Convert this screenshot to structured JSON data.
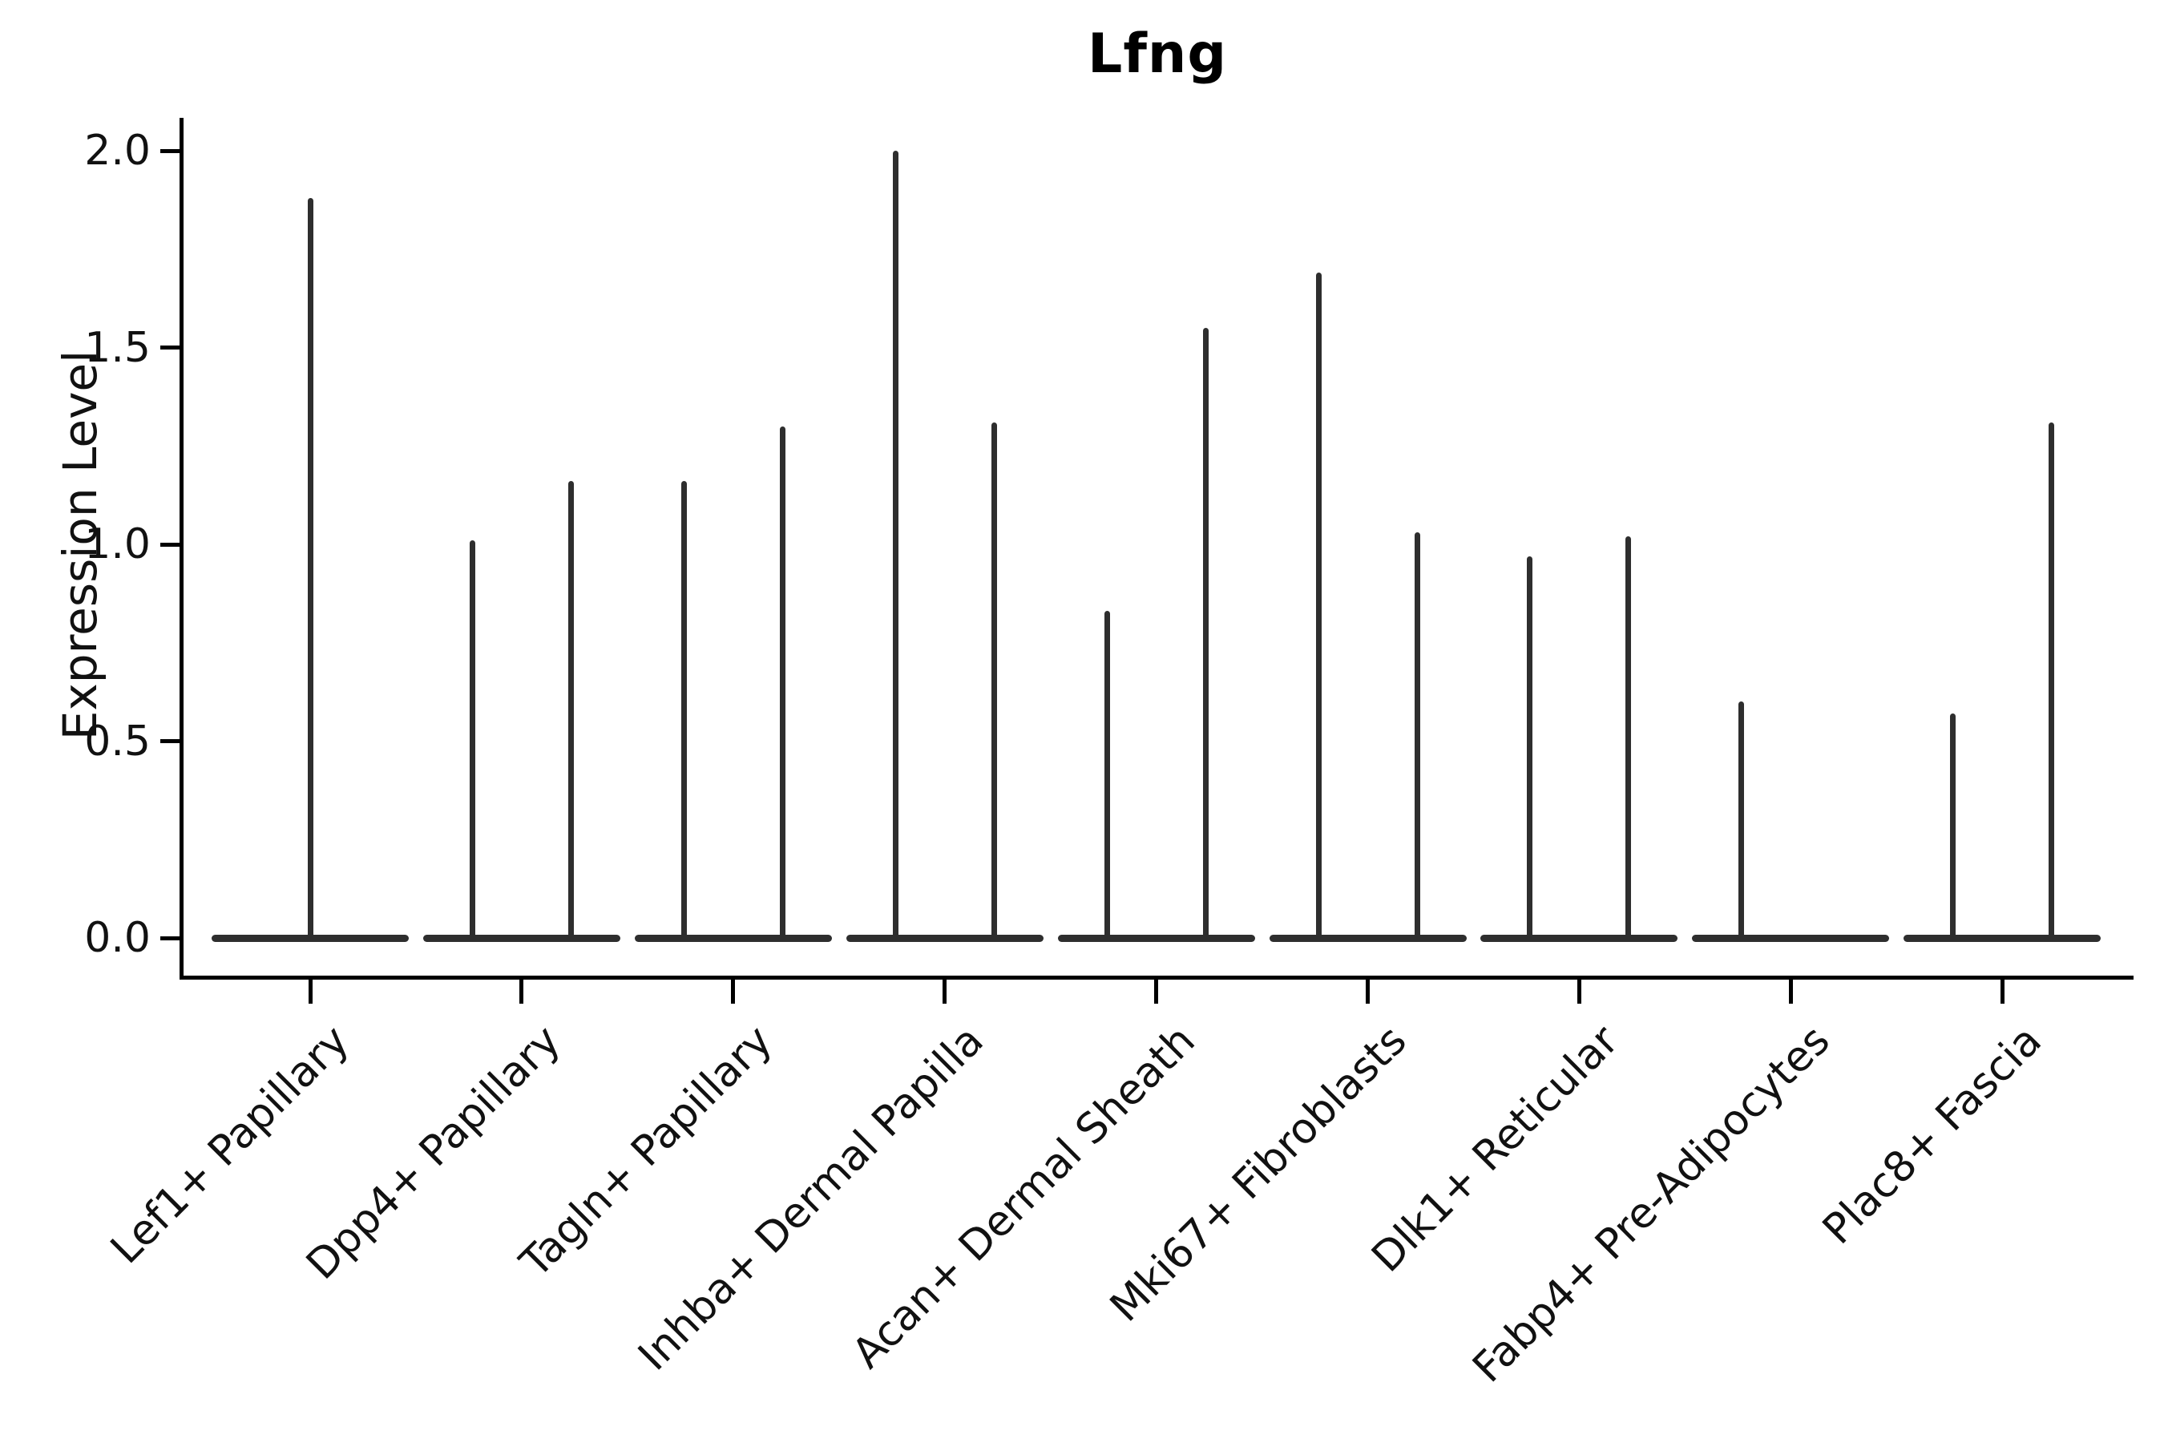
{
  "title": "Lfng",
  "y_axis_label": "Expression Level",
  "colors": {
    "violin": "#2e2e2e",
    "axis": "#000000",
    "text": "#111111",
    "background": "#ffffff"
  },
  "chart_data": {
    "type": "violin",
    "title": "Lfng",
    "xlabel": "",
    "ylabel": "Expression Level",
    "ylim": [
      0,
      2.0
    ],
    "yticks": [
      0.0,
      0.5,
      1.0,
      1.5,
      2.0
    ],
    "ytick_labels": [
      "0.0",
      "0.5",
      "1.0",
      "1.5",
      "2.0"
    ],
    "grid": false,
    "legend_position": "none",
    "x_tick_label_rotation_deg": 45,
    "description": "Seurat-style split violin plot of Lfng expression; most cells are at 0 so each violin collapses to a flat base at 0 with a thin spike reaching the maximum expression value. Categories 2-9 contain two side-by-side half-width violins (split groups); category 1 shows a single full-width violin and category 8's right group is entirely at 0 (no spike).",
    "categories": [
      "Lef1+ Papillary",
      "Dpp4+ Papillary",
      "Tagln+ Papillary",
      "Inhba+ Dermal Papilla",
      "Acan+ Dermal Sheath",
      "Mki67+ Fibroblasts",
      "Dlk1+ Reticular",
      "Fabp4+ Pre-Adipocytes",
      "Plac8+ Fascia"
    ],
    "violins": [
      {
        "category": "Lef1+ Papillary",
        "split": "single",
        "baseline_value": 0.0,
        "max_values": [
          1.88
        ]
      },
      {
        "category": "Dpp4+ Papillary",
        "split": "double",
        "baseline_value": 0.0,
        "max_values": [
          1.01,
          1.16
        ]
      },
      {
        "category": "Tagln+ Papillary",
        "split": "double",
        "baseline_value": 0.0,
        "max_values": [
          1.16,
          1.3
        ]
      },
      {
        "category": "Inhba+ Dermal Papilla",
        "split": "double",
        "baseline_value": 0.0,
        "max_values": [
          2.0,
          1.31
        ]
      },
      {
        "category": "Acan+ Dermal Sheath",
        "split": "double",
        "baseline_value": 0.0,
        "max_values": [
          0.83,
          1.55
        ]
      },
      {
        "category": "Mki67+ Fibroblasts",
        "split": "double",
        "baseline_value": 0.0,
        "max_values": [
          1.69,
          1.03
        ]
      },
      {
        "category": "Dlk1+ Reticular",
        "split": "double",
        "baseline_value": 0.0,
        "max_values": [
          0.97,
          1.02
        ]
      },
      {
        "category": "Fabp4+ Pre-Adipocytes",
        "split": "double",
        "baseline_value": 0.0,
        "max_values": [
          0.6,
          0.0
        ]
      },
      {
        "category": "Plac8+ Fascia",
        "split": "double",
        "baseline_value": 0.0,
        "max_values": [
          0.57,
          1.31
        ]
      }
    ]
  }
}
